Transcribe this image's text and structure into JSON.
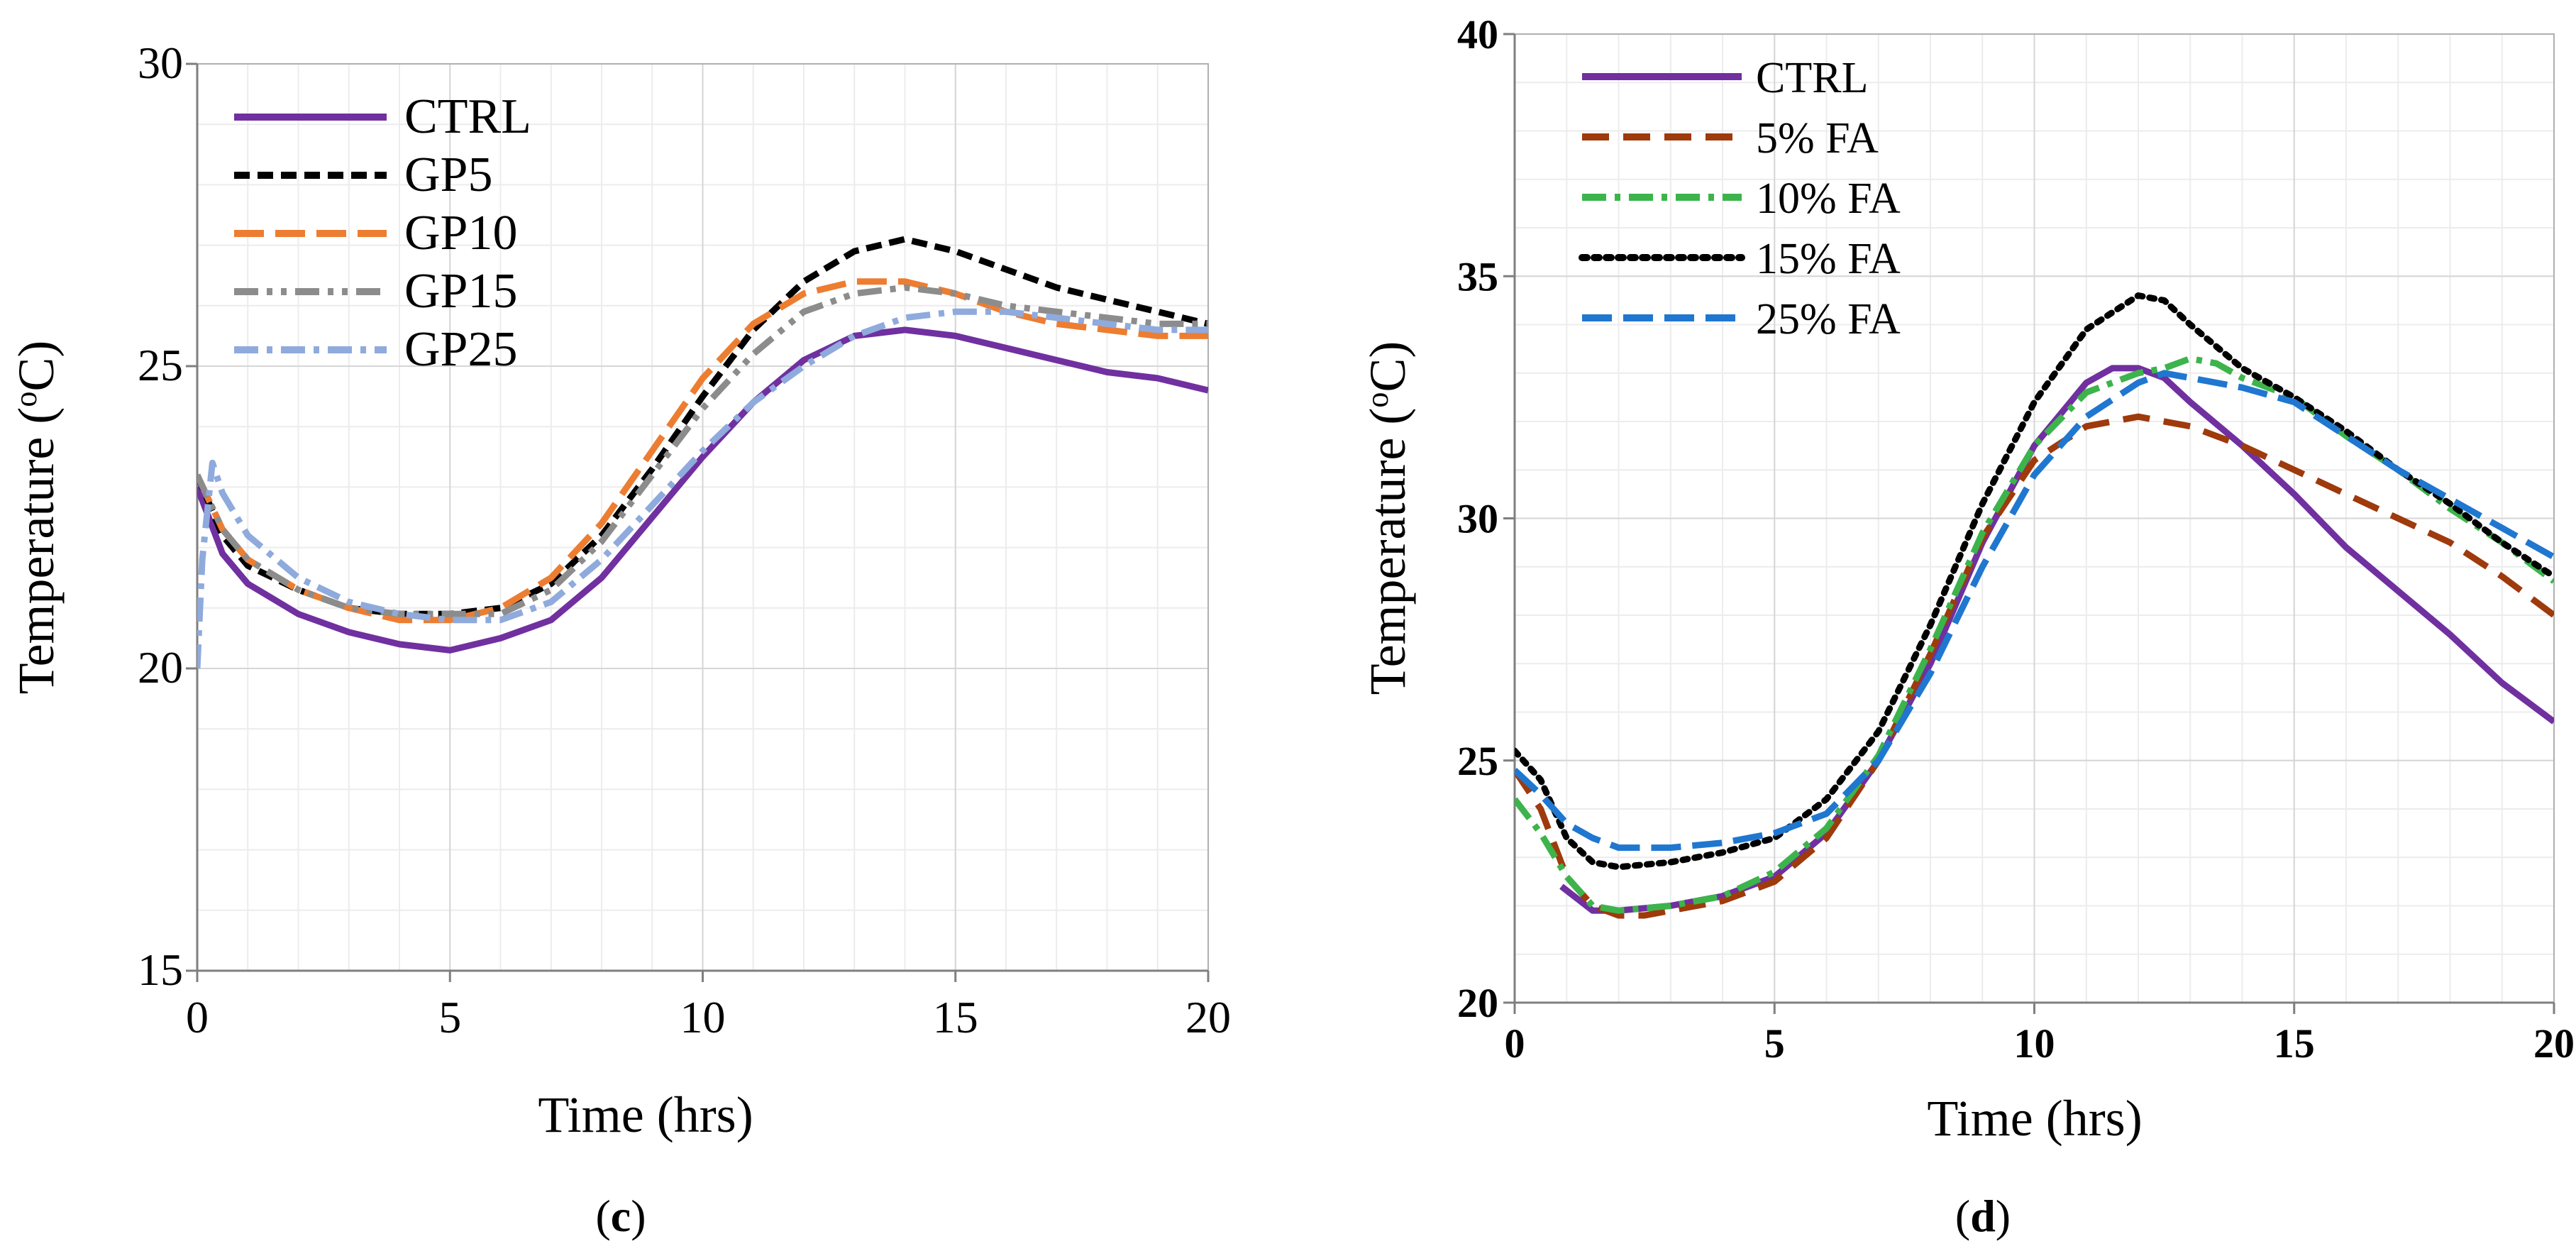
{
  "chart_data": [
    {
      "type": "line",
      "panel": "c",
      "caption_open": "(",
      "caption_letter": "c",
      "caption_close": ")",
      "xlabel": "Time (hrs)",
      "ylabel_prefix": "Temperature (",
      "ylabel_sup": "o",
      "ylabel_suffix": "C)",
      "xlim": [
        0,
        20
      ],
      "ylim": [
        15,
        30
      ],
      "xticks": [
        0,
        5,
        10,
        15,
        20
      ],
      "yticks": [
        15,
        20,
        25,
        30
      ],
      "grid": true,
      "legend_position": "top-left",
      "series": [
        {
          "name": "CTRL",
          "color": "#7030A0",
          "dash": "solid",
          "points": [
            [
              0,
              23.0
            ],
            [
              0.5,
              21.9
            ],
            [
              1,
              21.4
            ],
            [
              2,
              20.9
            ],
            [
              3,
              20.6
            ],
            [
              4,
              20.4
            ],
            [
              5,
              20.3
            ],
            [
              6,
              20.5
            ],
            [
              7,
              20.8
            ],
            [
              8,
              21.5
            ],
            [
              9,
              22.5
            ],
            [
              10,
              23.5
            ],
            [
              11,
              24.4
            ],
            [
              12,
              25.1
            ],
            [
              13,
              25.5
            ],
            [
              14,
              25.6
            ],
            [
              15,
              25.5
            ],
            [
              16,
              25.3
            ],
            [
              17,
              25.1
            ],
            [
              18,
              24.9
            ],
            [
              19,
              24.8
            ],
            [
              20,
              24.6
            ]
          ]
        },
        {
          "name": "GP5",
          "color": "#000000",
          "dash": "dash",
          "points": [
            [
              0,
              23.2
            ],
            [
              0.5,
              22.2
            ],
            [
              1,
              21.7
            ],
            [
              2,
              21.3
            ],
            [
              3,
              21.0
            ],
            [
              4,
              20.9
            ],
            [
              5,
              20.9
            ],
            [
              6,
              21.0
            ],
            [
              7,
              21.4
            ],
            [
              8,
              22.2
            ],
            [
              9,
              23.3
            ],
            [
              10,
              24.5
            ],
            [
              11,
              25.6
            ],
            [
              12,
              26.4
            ],
            [
              13,
              26.9
            ],
            [
              14,
              27.1
            ],
            [
              15,
              26.9
            ],
            [
              16,
              26.6
            ],
            [
              17,
              26.3
            ],
            [
              18,
              26.1
            ],
            [
              19,
              25.9
            ],
            [
              20,
              25.7
            ]
          ]
        },
        {
          "name": "GP10",
          "color": "#ED7D31",
          "dash": "longdash",
          "points": [
            [
              0,
              23.2
            ],
            [
              0.5,
              22.3
            ],
            [
              1,
              21.8
            ],
            [
              2,
              21.3
            ],
            [
              3,
              21.0
            ],
            [
              4,
              20.8
            ],
            [
              5,
              20.8
            ],
            [
              6,
              21.0
            ],
            [
              7,
              21.5
            ],
            [
              8,
              22.4
            ],
            [
              9,
              23.6
            ],
            [
              10,
              24.8
            ],
            [
              11,
              25.7
            ],
            [
              12,
              26.2
            ],
            [
              13,
              26.4
            ],
            [
              14,
              26.4
            ],
            [
              15,
              26.2
            ],
            [
              16,
              25.9
            ],
            [
              17,
              25.7
            ],
            [
              18,
              25.6
            ],
            [
              19,
              25.5
            ],
            [
              20,
              25.5
            ]
          ]
        },
        {
          "name": "GP15",
          "color": "#8C8C8C",
          "dash": "dashdotdot",
          "points": [
            [
              0,
              23.2
            ],
            [
              0.5,
              22.3
            ],
            [
              1,
              21.8
            ],
            [
              2,
              21.3
            ],
            [
              3,
              21.0
            ],
            [
              4,
              20.9
            ],
            [
              5,
              20.9
            ],
            [
              6,
              20.9
            ],
            [
              7,
              21.3
            ],
            [
              8,
              22.1
            ],
            [
              9,
              23.2
            ],
            [
              10,
              24.3
            ],
            [
              11,
              25.2
            ],
            [
              12,
              25.9
            ],
            [
              13,
              26.2
            ],
            [
              14,
              26.3
            ],
            [
              15,
              26.2
            ],
            [
              16,
              26.0
            ],
            [
              17,
              25.9
            ],
            [
              18,
              25.8
            ],
            [
              19,
              25.7
            ],
            [
              20,
              25.7
            ]
          ]
        },
        {
          "name": "GP25",
          "color": "#8FAADC",
          "dash": "dashdot",
          "points": [
            [
              0,
              20.0
            ],
            [
              0.1,
              21.8
            ],
            [
              0.3,
              23.4
            ],
            [
              0.5,
              22.9
            ],
            [
              1,
              22.2
            ],
            [
              2,
              21.5
            ],
            [
              3,
              21.1
            ],
            [
              4,
              20.9
            ],
            [
              5,
              20.8
            ],
            [
              6,
              20.8
            ],
            [
              7,
              21.1
            ],
            [
              8,
              21.8
            ],
            [
              9,
              22.7
            ],
            [
              10,
              23.6
            ],
            [
              11,
              24.4
            ],
            [
              12,
              25.0
            ],
            [
              13,
              25.5
            ],
            [
              14,
              25.8
            ],
            [
              15,
              25.9
            ],
            [
              16,
              25.9
            ],
            [
              17,
              25.8
            ],
            [
              18,
              25.7
            ],
            [
              19,
              25.6
            ],
            [
              20,
              25.6
            ]
          ]
        }
      ]
    },
    {
      "type": "line",
      "panel": "d",
      "caption_open": "(",
      "caption_letter": "d",
      "caption_close": ")",
      "xlabel": "Time (hrs)",
      "ylabel_prefix": "Temperature (",
      "ylabel_sup": "o",
      "ylabel_suffix": "C)",
      "xlim": [
        0,
        20
      ],
      "ylim": [
        20,
        40
      ],
      "xticks": [
        0,
        5,
        10,
        15,
        20
      ],
      "yticks": [
        20,
        25,
        30,
        35,
        40
      ],
      "grid": true,
      "legend_position": "top-left",
      "series": [
        {
          "name": "CTRL",
          "color": "#7030A0",
          "dash": "solid",
          "points": [
            [
              0.9,
              22.4
            ],
            [
              1.5,
              21.9
            ],
            [
              2,
              21.9
            ],
            [
              3,
              22.0
            ],
            [
              4,
              22.2
            ],
            [
              5,
              22.6
            ],
            [
              6,
              23.5
            ],
            [
              7,
              25.0
            ],
            [
              8,
              27.0
            ],
            [
              9,
              29.5
            ],
            [
              10,
              31.5
            ],
            [
              11,
              32.8
            ],
            [
              11.5,
              33.1
            ],
            [
              12,
              33.1
            ],
            [
              12.5,
              32.9
            ],
            [
              13,
              32.4
            ],
            [
              14,
              31.5
            ],
            [
              15,
              30.5
            ],
            [
              16,
              29.4
            ],
            [
              17,
              28.5
            ],
            [
              18,
              27.6
            ],
            [
              19,
              26.6
            ],
            [
              20,
              25.8
            ]
          ]
        },
        {
          "name": "5% FA",
          "color": "#9E3A0C",
          "dash": "bigdash",
          "points": [
            [
              0,
              24.8
            ],
            [
              0.5,
              24.0
            ],
            [
              1,
              22.6
            ],
            [
              1.5,
              22.0
            ],
            [
              2,
              21.8
            ],
            [
              2.5,
              21.8
            ],
            [
              3,
              21.9
            ],
            [
              4,
              22.1
            ],
            [
              5,
              22.5
            ],
            [
              6,
              23.4
            ],
            [
              7,
              25.0
            ],
            [
              8,
              27.2
            ],
            [
              9,
              29.6
            ],
            [
              10,
              31.2
            ],
            [
              11,
              31.9
            ],
            [
              12,
              32.1
            ],
            [
              13,
              31.9
            ],
            [
              14,
              31.5
            ],
            [
              15,
              31.0
            ],
            [
              16,
              30.5
            ],
            [
              17,
              30.0
            ],
            [
              18,
              29.5
            ],
            [
              19,
              28.8
            ],
            [
              20,
              28.0
            ]
          ]
        },
        {
          "name": "10% FA",
          "color": "#3CB44B",
          "dash": "dashdot",
          "points": [
            [
              0,
              24.2
            ],
            [
              0.5,
              23.5
            ],
            [
              1,
              22.6
            ],
            [
              1.5,
              22.0
            ],
            [
              2,
              21.9
            ],
            [
              3,
              22.0
            ],
            [
              4,
              22.2
            ],
            [
              5,
              22.7
            ],
            [
              6,
              23.6
            ],
            [
              7,
              25.1
            ],
            [
              8,
              27.3
            ],
            [
              9,
              29.7
            ],
            [
              10,
              31.5
            ],
            [
              11,
              32.6
            ],
            [
              12,
              33.0
            ],
            [
              12.5,
              33.1
            ],
            [
              13,
              33.3
            ],
            [
              13.5,
              33.2
            ],
            [
              14,
              32.9
            ],
            [
              15,
              32.5
            ],
            [
              16,
              31.7
            ],
            [
              17,
              31.0
            ],
            [
              18,
              30.2
            ],
            [
              19,
              29.5
            ],
            [
              20,
              28.7
            ]
          ]
        },
        {
          "name": "15% FA",
          "color": "#000000",
          "dash": "dot",
          "points": [
            [
              0,
              25.2
            ],
            [
              0.5,
              24.6
            ],
            [
              1,
              23.4
            ],
            [
              1.5,
              22.9
            ],
            [
              2,
              22.8
            ],
            [
              3,
              22.9
            ],
            [
              4,
              23.1
            ],
            [
              5,
              23.4
            ],
            [
              6,
              24.2
            ],
            [
              7,
              25.6
            ],
            [
              8,
              27.8
            ],
            [
              9,
              30.3
            ],
            [
              10,
              32.4
            ],
            [
              11,
              33.9
            ],
            [
              12,
              34.6
            ],
            [
              12.5,
              34.5
            ],
            [
              13,
              34.0
            ],
            [
              14,
              33.1
            ],
            [
              15,
              32.5
            ],
            [
              16,
              31.8
            ],
            [
              17,
              31.0
            ],
            [
              18,
              30.3
            ],
            [
              19,
              29.5
            ],
            [
              20,
              28.8
            ]
          ]
        },
        {
          "name": "25% FA",
          "color": "#1F77D0",
          "dash": "longdash",
          "points": [
            [
              0,
              24.8
            ],
            [
              0.5,
              24.3
            ],
            [
              1,
              23.7
            ],
            [
              1.5,
              23.4
            ],
            [
              2,
              23.2
            ],
            [
              3,
              23.2
            ],
            [
              4,
              23.3
            ],
            [
              5,
              23.5
            ],
            [
              6,
              23.9
            ],
            [
              7,
              25.0
            ],
            [
              8,
              26.8
            ],
            [
              9,
              29.0
            ],
            [
              10,
              30.9
            ],
            [
              11,
              32.1
            ],
            [
              12,
              32.8
            ],
            [
              12.5,
              33.0
            ],
            [
              13,
              32.9
            ],
            [
              14,
              32.7
            ],
            [
              15,
              32.4
            ],
            [
              16,
              31.7
            ],
            [
              17,
              31.0
            ],
            [
              18,
              30.4
            ],
            [
              19,
              29.8
            ],
            [
              20,
              29.2
            ]
          ]
        }
      ]
    }
  ]
}
